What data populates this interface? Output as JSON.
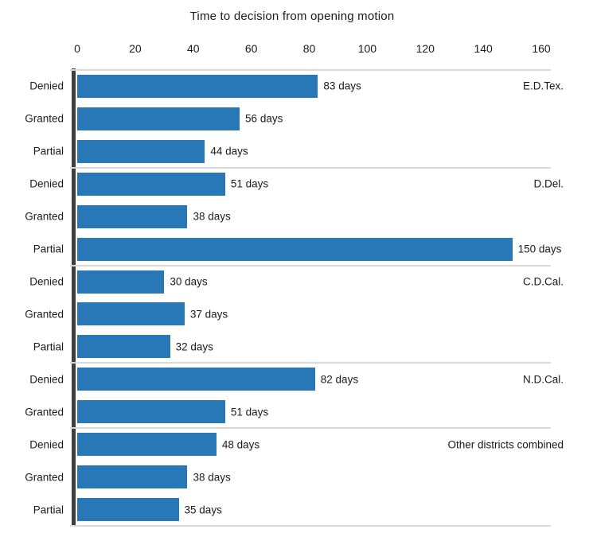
{
  "chart_data": {
    "type": "bar",
    "orientation": "horizontal",
    "title": "Time to decision from opening motion",
    "value_suffix": " days",
    "x_axis": {
      "position": "top",
      "ticks": [
        0,
        20,
        40,
        60,
        80,
        100,
        120,
        140,
        160
      ],
      "min": 0,
      "max": 160
    },
    "groups": [
      {
        "district": "E.D.Tex.",
        "bars": [
          {
            "category": "Denied",
            "value": 83
          },
          {
            "category": "Granted",
            "value": 56
          },
          {
            "category": "Partial",
            "value": 44
          }
        ]
      },
      {
        "district": "D.Del.",
        "bars": [
          {
            "category": "Denied",
            "value": 51
          },
          {
            "category": "Granted",
            "value": 38
          },
          {
            "category": "Partial",
            "value": 150
          }
        ]
      },
      {
        "district": "C.D.Cal.",
        "bars": [
          {
            "category": "Denied",
            "value": 30
          },
          {
            "category": "Granted",
            "value": 37
          },
          {
            "category": "Partial",
            "value": 32
          }
        ]
      },
      {
        "district": "N.D.Cal.",
        "bars": [
          {
            "category": "Denied",
            "value": 82
          },
          {
            "category": "Granted",
            "value": 51
          }
        ]
      },
      {
        "district": "Other districts combined",
        "bars": [
          {
            "category": "Denied",
            "value": 48
          },
          {
            "category": "Granted",
            "value": 38
          },
          {
            "category": "Partial",
            "value": 35
          }
        ]
      }
    ],
    "colors": {
      "bar": "#2878b8",
      "axis_line": "#3f3f3f",
      "separator": "#d9d9d9",
      "text": "#1a1a1a"
    }
  }
}
